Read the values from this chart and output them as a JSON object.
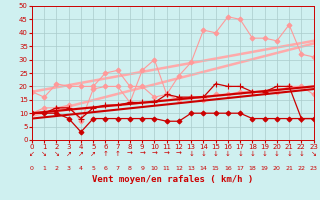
{
  "xlabel": "Vent moyen/en rafales ( km/h )",
  "xlim": [
    0,
    23
  ],
  "ylim": [
    0,
    50
  ],
  "yticks": [
    0,
    5,
    10,
    15,
    20,
    25,
    30,
    35,
    40,
    45,
    50
  ],
  "xticks": [
    0,
    1,
    2,
    3,
    4,
    5,
    6,
    7,
    8,
    9,
    10,
    11,
    12,
    13,
    14,
    15,
    16,
    17,
    18,
    19,
    20,
    21,
    22,
    23
  ],
  "bg_color": "#cff0f0",
  "grid_color": "#aacccc",
  "series": [
    {
      "comment": "light pink - high gusts line (top scattered)",
      "x": [
        0,
        1,
        2,
        3,
        4,
        5,
        6,
        7,
        8,
        9,
        10,
        11,
        12,
        13,
        14,
        15,
        16,
        17,
        18,
        19,
        20,
        21,
        22,
        23
      ],
      "y": [
        10,
        12,
        12,
        13,
        7,
        19,
        20,
        20,
        14,
        26,
        30,
        17,
        24,
        29,
        41,
        40,
        46,
        45,
        38,
        38,
        37,
        43,
        32,
        31
      ],
      "color": "#ff9999",
      "marker": "D",
      "markersize": 2.5,
      "linewidth": 0.8,
      "zorder": 2
    },
    {
      "comment": "light pink - medium line",
      "x": [
        0,
        1,
        2,
        3,
        4,
        5,
        6,
        7,
        8,
        9,
        10,
        11,
        12,
        13,
        14,
        15,
        16,
        17,
        18,
        19,
        20,
        21,
        22,
        23
      ],
      "y": [
        18,
        16,
        21,
        20,
        20,
        20,
        25,
        26,
        20,
        20,
        16,
        17,
        15,
        16,
        15,
        17,
        17,
        18,
        18,
        18,
        18,
        20,
        20,
        17
      ],
      "color": "#ff9999",
      "marker": "D",
      "markersize": 2.5,
      "linewidth": 0.8,
      "zorder": 2
    },
    {
      "comment": "regression line top - light pink",
      "x": [
        0,
        23
      ],
      "y": [
        9,
        36
      ],
      "color": "#ffaaaa",
      "marker": null,
      "markersize": 0,
      "linewidth": 1.8,
      "zorder": 1
    },
    {
      "comment": "regression line mid-top - light pink",
      "x": [
        0,
        23
      ],
      "y": [
        18,
        37
      ],
      "color": "#ffaaaa",
      "marker": null,
      "markersize": 0,
      "linewidth": 1.8,
      "zorder": 1
    },
    {
      "comment": "regression line bottom - light pink",
      "x": [
        0,
        23
      ],
      "y": [
        10,
        20
      ],
      "color": "#ffaaaa",
      "marker": null,
      "markersize": 0,
      "linewidth": 1.8,
      "zorder": 1
    },
    {
      "comment": "dark red - lower flat line with diamonds",
      "x": [
        0,
        1,
        2,
        3,
        4,
        5,
        6,
        7,
        8,
        9,
        10,
        11,
        12,
        13,
        14,
        15,
        16,
        17,
        18,
        19,
        20,
        21,
        22,
        23
      ],
      "y": [
        10,
        10,
        10,
        8,
        3,
        8,
        8,
        8,
        8,
        8,
        8,
        7,
        7,
        10,
        10,
        10,
        10,
        10,
        8,
        8,
        8,
        8,
        8,
        8
      ],
      "color": "#cc0000",
      "marker": "D",
      "markersize": 2.5,
      "linewidth": 0.9,
      "zorder": 4
    },
    {
      "comment": "dark red - mid line with plus markers",
      "x": [
        0,
        1,
        2,
        3,
        4,
        5,
        6,
        7,
        8,
        9,
        10,
        11,
        12,
        13,
        14,
        15,
        16,
        17,
        18,
        19,
        20,
        21,
        22,
        23
      ],
      "y": [
        10,
        10,
        12,
        12,
        8,
        12,
        13,
        13,
        14,
        14,
        14,
        17,
        16,
        16,
        16,
        21,
        20,
        20,
        18,
        18,
        20,
        20,
        8,
        8
      ],
      "color": "#cc0000",
      "marker": "+",
      "markersize": 4,
      "linewidth": 0.9,
      "zorder": 4
    },
    {
      "comment": "dark red regression line bottom",
      "x": [
        0,
        23
      ],
      "y": [
        8,
        19
      ],
      "color": "#cc0000",
      "marker": null,
      "markersize": 0,
      "linewidth": 1.5,
      "zorder": 3
    },
    {
      "comment": "dark red regression line top",
      "x": [
        0,
        23
      ],
      "y": [
        10,
        20
      ],
      "color": "#cc0000",
      "marker": null,
      "markersize": 0,
      "linewidth": 1.5,
      "zorder": 3
    }
  ],
  "wind_arrows": [
    "↙",
    "↘",
    "↘",
    "↗",
    "↗",
    "↗",
    "↑",
    "↑",
    "→",
    "→",
    "→",
    "→",
    "→",
    "↓",
    "↓",
    "↓",
    "↓",
    "↓",
    "↓",
    "↓",
    "↓",
    "↓",
    "↓",
    "↘"
  ],
  "arrow_color": "#cc0000"
}
